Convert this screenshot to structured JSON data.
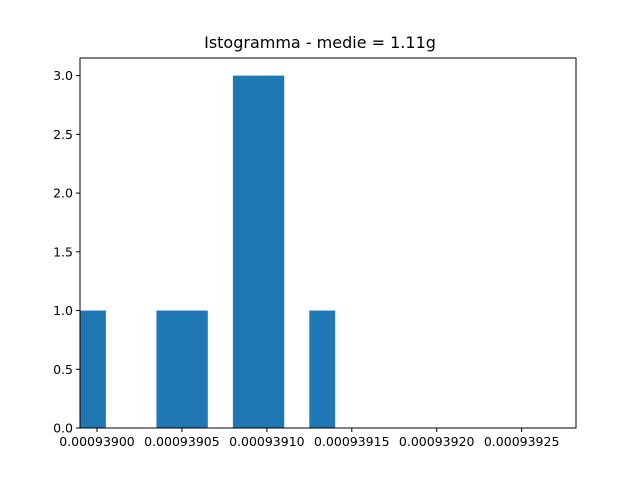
{
  "chart_data": {
    "type": "bar",
    "title": "Istogramma - medie = 1.11g",
    "xlabel": "",
    "ylabel": "",
    "bar_color": "#1f77b4",
    "bins": [
      {
        "x0": 0.00093899,
        "x1": 0.000939005,
        "count": 1
      },
      {
        "x0": 0.000939005,
        "x1": 0.00093902,
        "count": 0
      },
      {
        "x0": 0.00093902,
        "x1": 0.000939035,
        "count": 0
      },
      {
        "x0": 0.000939035,
        "x1": 0.00093905,
        "count": 1
      },
      {
        "x0": 0.00093905,
        "x1": 0.000939065,
        "count": 1
      },
      {
        "x0": 0.000939065,
        "x1": 0.00093908,
        "count": 0
      },
      {
        "x0": 0.00093908,
        "x1": 0.000939095,
        "count": 3
      },
      {
        "x0": 0.000939095,
        "x1": 0.00093911,
        "count": 3
      },
      {
        "x0": 0.00093911,
        "x1": 0.000939125,
        "count": 0
      },
      {
        "x0": 0.000939125,
        "x1": 0.00093914,
        "count": 1
      }
    ],
    "xlim": [
      0.00093899,
      0.000939282
    ],
    "ylim": [
      0,
      3.15
    ],
    "xticks": [
      {
        "value": 0.000939,
        "label": "0.00093900"
      },
      {
        "value": 0.00093905,
        "label": "0.00093905"
      },
      {
        "value": 0.0009391,
        "label": "0.00093910"
      },
      {
        "value": 0.00093915,
        "label": "0.00093915"
      },
      {
        "value": 0.0009392,
        "label": "0.00093920"
      },
      {
        "value": 0.00093925,
        "label": "0.00093925"
      }
    ],
    "yticks": [
      {
        "value": 0.0,
        "label": "0.0"
      },
      {
        "value": 0.5,
        "label": "0.5"
      },
      {
        "value": 1.0,
        "label": "1.0"
      },
      {
        "value": 1.5,
        "label": "1.5"
      },
      {
        "value": 2.0,
        "label": "2.0"
      },
      {
        "value": 2.5,
        "label": "2.5"
      },
      {
        "value": 3.0,
        "label": "3.0"
      }
    ],
    "grid": false,
    "legend": "none"
  }
}
